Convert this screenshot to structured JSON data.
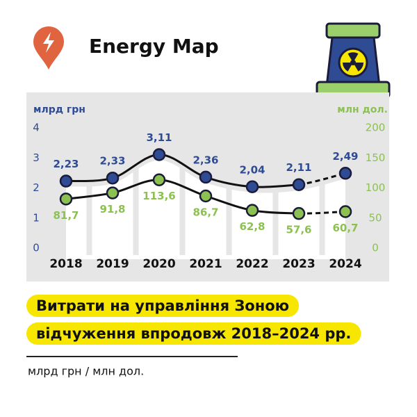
{
  "brand": "Energy Map",
  "chart_data": {
    "type": "line",
    "title": [
      "Витрати на управління Зоною",
      "відчуження впродовж 2018–2024 рр."
    ],
    "subtitle": "млрд грн / млн дол.",
    "y_label": "млрд грн",
    "y2_label": "млн дол.",
    "categories": [
      "2018",
      "2019",
      "2020",
      "2021",
      "2022",
      "2023",
      "2024"
    ],
    "ylim": [
      0,
      4
    ],
    "yticks": [
      0,
      1,
      2,
      3,
      4
    ],
    "y2lim": [
      0,
      200
    ],
    "y2ticks": [
      0,
      50,
      100,
      150,
      200
    ],
    "series": [
      {
        "name": "млрд грн",
        "color": "#2f4b94",
        "values": [
          2.23,
          2.33,
          3.11,
          2.36,
          2.04,
          2.11,
          2.49
        ],
        "value_labels": [
          "2,23",
          "2,33",
          "3,11",
          "2,36",
          "2,04",
          "2,11",
          "2,49"
        ]
      },
      {
        "name": "млн дол.",
        "color": "#8cc152",
        "axis": "y2",
        "values": [
          81.7,
          91.8,
          113.6,
          86.7,
          62.8,
          57.6,
          60.7
        ],
        "value_labels": [
          "81,7",
          "91,8",
          "113,6",
          "86,7",
          "62,8",
          "57,6",
          "60,7"
        ]
      }
    ]
  }
}
